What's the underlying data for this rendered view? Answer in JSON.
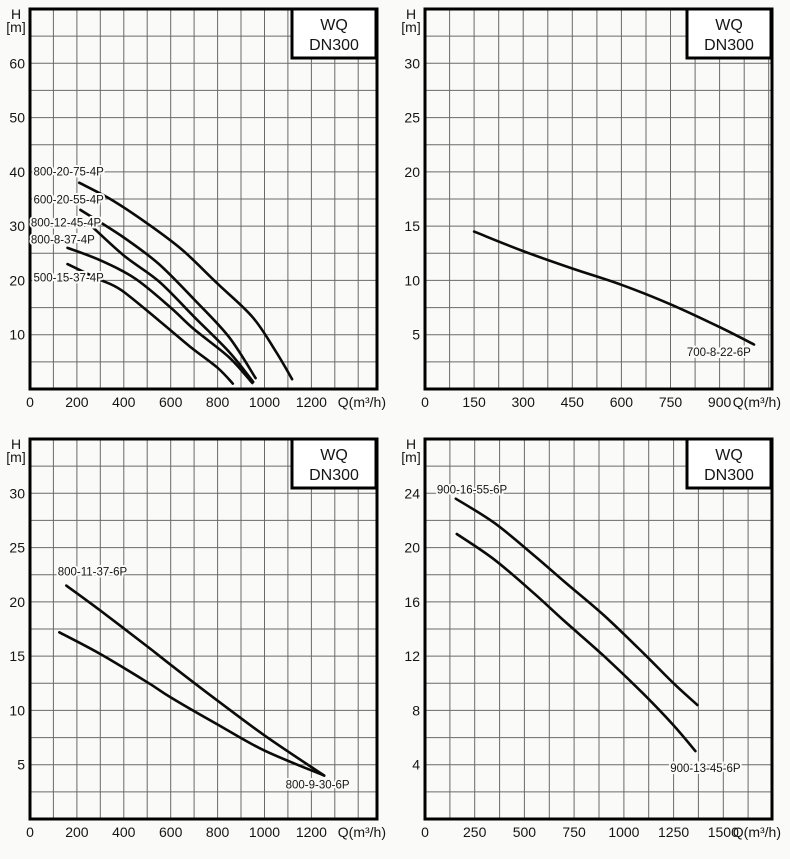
{
  "colors": {
    "page_bg": "#fafaf8",
    "grid": "#6a6a6a",
    "frame": "#000000",
    "curve": "#0b0b0b",
    "text": "#151515",
    "badge_bg": "#ffffff"
  },
  "badge": {
    "line1": "WQ",
    "line2": "DN300"
  },
  "chart_data": [
    {
      "id": "top-left",
      "type": "line",
      "x_axis": {
        "ticks": [
          0,
          200,
          400,
          600,
          800,
          1000,
          1200
        ],
        "minor_step": 100,
        "max": 1480,
        "unit": "Q(m³/h)"
      },
      "y_axis": {
        "ticks": [
          10,
          20,
          30,
          40,
          50,
          60
        ],
        "minor_step": 5,
        "max": 70,
        "label": [
          "H",
          "[m]"
        ]
      },
      "series": [
        {
          "name": "800-20-75-4P",
          "label_pos": {
            "x": 15,
            "y": 39.9,
            "anchor": "start"
          },
          "points": [
            [
              210,
              38
            ],
            [
              350,
              34.8
            ],
            [
              500,
              30.5
            ],
            [
              650,
              25.6
            ],
            [
              800,
              19.4
            ],
            [
              950,
              13.2
            ],
            [
              1050,
              6.8
            ],
            [
              1118,
              1.8
            ]
          ]
        },
        {
          "name": "600-20-55-4P",
          "label_pos": {
            "x": 15,
            "y": 34.7,
            "anchor": "start"
          },
          "points": [
            [
              215,
              33
            ],
            [
              400,
              27.9
            ],
            [
              550,
              23
            ],
            [
              700,
              16.5
            ],
            [
              850,
              9.5
            ],
            [
              962,
              2.0
            ]
          ]
        },
        {
          "name": "800-12-45-4P",
          "label_pos": {
            "x": 4,
            "y": 30.5,
            "anchor": "start"
          },
          "points": [
            [
              255,
              30.3
            ],
            [
              400,
              24.6
            ],
            [
              550,
              19.8
            ],
            [
              700,
              13.3
            ],
            [
              850,
              6.8
            ],
            [
              952,
              1.3
            ]
          ]
        },
        {
          "name": "800-8-37-4P",
          "label_pos": {
            "x": 4,
            "y": 27.4,
            "anchor": "start"
          },
          "points": [
            [
              160,
              26
            ],
            [
              300,
              23.7
            ],
            [
              450,
              20.3
            ],
            [
              600,
              15
            ],
            [
              700,
              11
            ],
            [
              850,
              5.8
            ],
            [
              948,
              1.1
            ]
          ]
        },
        {
          "name": "500-15-37-4P",
          "label_pos": {
            "x": 15,
            "y": 20.4,
            "anchor": "start"
          },
          "points": [
            [
              160,
              23
            ],
            [
              290,
              20.3
            ],
            [
              390,
              18.2
            ],
            [
              550,
              12.6
            ],
            [
              683,
              7.8
            ],
            [
              800,
              3.9
            ],
            [
              865,
              1.0
            ]
          ]
        }
      ]
    },
    {
      "id": "top-right",
      "type": "line",
      "x_axis": {
        "ticks": [
          0,
          150,
          300,
          450,
          600,
          750,
          900
        ],
        "minor_step": 75,
        "max": 1060,
        "unit": "Q(m³/h)"
      },
      "y_axis": {
        "ticks": [
          5,
          10,
          15,
          20,
          25,
          30
        ],
        "minor_step": 2.5,
        "max": 35,
        "label": [
          "H",
          "[m]"
        ]
      },
      "series": [
        {
          "name": "700-8-22-6P",
          "label_pos": {
            "x": 800,
            "y": 3.3,
            "anchor": "start"
          },
          "points": [
            [
              150,
              14.5
            ],
            [
              300,
              12.7
            ],
            [
              450,
              11.1
            ],
            [
              600,
              9.6
            ],
            [
              750,
              7.8
            ],
            [
              900,
              5.7
            ],
            [
              1005,
              4.1
            ]
          ]
        }
      ]
    },
    {
      "id": "bottom-left",
      "type": "line",
      "x_axis": {
        "ticks": [
          0,
          200,
          400,
          600,
          800,
          1000,
          1200
        ],
        "minor_step": 100,
        "max": 1480,
        "unit": "Q(m³/h)"
      },
      "y_axis": {
        "ticks": [
          5,
          10,
          15,
          20,
          25,
          30
        ],
        "minor_step": 2.5,
        "max": 35,
        "label": [
          "H",
          "[m]"
        ]
      },
      "series": [
        {
          "name": "800-11-37-6P",
          "label_pos": {
            "x": 118,
            "y": 22.7,
            "anchor": "start"
          },
          "points": [
            [
              155,
              21.5
            ],
            [
              300,
              19.2
            ],
            [
              500,
              15.9
            ],
            [
              600,
              14.2
            ],
            [
              800,
              10.9
            ],
            [
              1000,
              7.7
            ],
            [
              1255,
              4.0
            ]
          ]
        },
        {
          "name": "800-9-30-6P",
          "label_pos": {
            "x": 1090,
            "y": 3.1,
            "anchor": "start"
          },
          "points": [
            [
              125,
              17.2
            ],
            [
              300,
              15.2
            ],
            [
              500,
              12.6
            ],
            [
              600,
              11.2
            ],
            [
              800,
              8.7
            ],
            [
              1000,
              6.3
            ],
            [
              1255,
              4.0
            ]
          ]
        }
      ]
    },
    {
      "id": "bottom-right",
      "type": "line",
      "x_axis": {
        "ticks": [
          0,
          250,
          500,
          750,
          1000,
          1250,
          1500
        ],
        "minor_step": 125,
        "max": 1745,
        "unit": "Q(m³/h)"
      },
      "y_axis": {
        "ticks": [
          4,
          8,
          12,
          16,
          20,
          24
        ],
        "minor_step": 2,
        "max": 28,
        "label": [
          "H",
          "[m]"
        ]
      },
      "series": [
        {
          "name": "900-16-55-6P",
          "label_pos": {
            "x": 60,
            "y": 24.2,
            "anchor": "start"
          },
          "points": [
            [
              155,
              23.6
            ],
            [
              350,
              21.8
            ],
            [
              550,
              19.4
            ],
            [
              700,
              17.5
            ],
            [
              900,
              15.0
            ],
            [
              1100,
              12.2
            ],
            [
              1250,
              10.0
            ],
            [
              1370,
              8.4
            ]
          ]
        },
        {
          "name": "900-13-45-6P",
          "label_pos": {
            "x": 1410,
            "y": 3.7,
            "anchor": "middle"
          },
          "points": [
            [
              160,
              21.0
            ],
            [
              350,
              19.1
            ],
            [
              550,
              16.6
            ],
            [
              700,
              14.6
            ],
            [
              900,
              12.0
            ],
            [
              1100,
              9.2
            ],
            [
              1250,
              6.9
            ],
            [
              1360,
              5.0
            ]
          ]
        }
      ]
    }
  ]
}
